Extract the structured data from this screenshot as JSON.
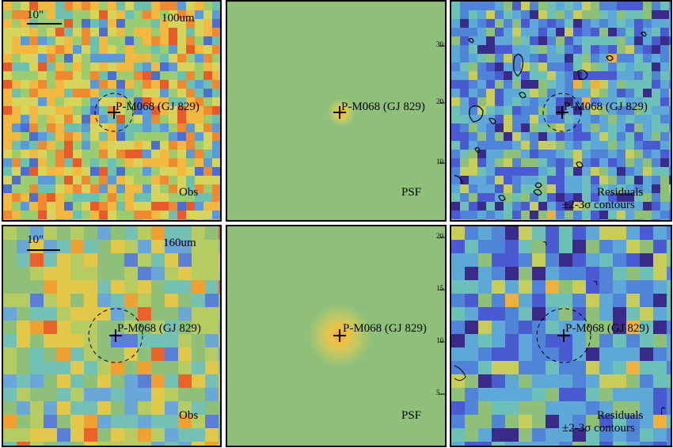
{
  "figure": {
    "rows": [
      {
        "band": "100um",
        "scale_bar_label": "10\"",
        "panels": [
          {
            "kind": "observed",
            "label": "Obs",
            "target": "P-M068 (GJ 829)",
            "palette": "orange"
          },
          {
            "kind": "psf",
            "label": "PSF",
            "target": "P-M068 (GJ 829)"
          },
          {
            "kind": "residuals",
            "label_line1": "Residuals",
            "label_line2": "±2-3σ contours",
            "target": "P-M068 (GJ 829)",
            "palette": "blue"
          }
        ]
      },
      {
        "band": "160um",
        "scale_bar_label": "10\"",
        "panels": [
          {
            "kind": "observed",
            "label": "Obs",
            "target": "P-M068 (GJ 829)",
            "palette": "green"
          },
          {
            "kind": "psf",
            "label": "PSF",
            "target": "P-M068 (GJ 829)"
          },
          {
            "kind": "residuals",
            "label_line1": "Residuals",
            "label_line2": "±2-3σ contours",
            "target": "P-M068 (GJ 829)",
            "palette": "blue"
          }
        ]
      }
    ],
    "psf_tick_labels_row1": [
      "30",
      "20",
      "10"
    ],
    "psf_tick_labels_row2": [
      "20",
      "15",
      "10",
      "5"
    ],
    "colors": {
      "psf_background": "#8ec07a",
      "psf_core": "#f0a030",
      "frame": "#000000"
    }
  }
}
